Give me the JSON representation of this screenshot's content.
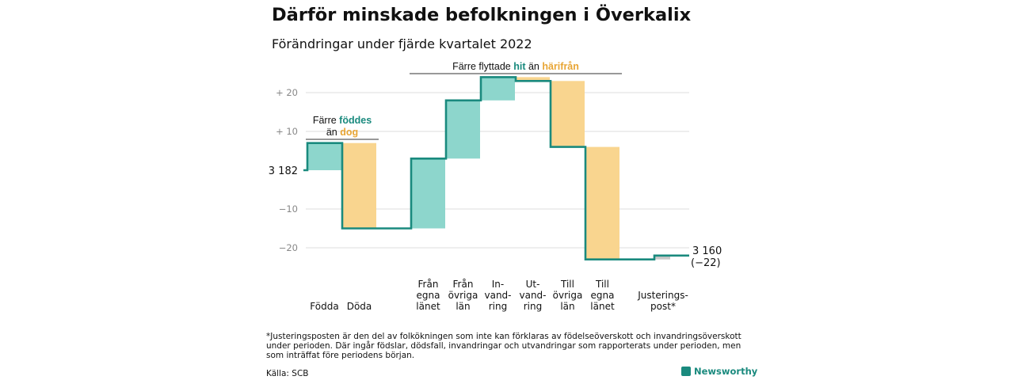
{
  "title": "Därför minskade befolkningen i Överkalix",
  "subtitle": "Förändringar under fjärde kvartalet 2022",
  "footnote": "*Justeringsposten är den del av folkökningen som inte kan förklaras av födelseöverskott och invandringsöverskott under perioden. Där ingår födslar, dödsfall, invandringar och utvandringar som rapporterats under perioden, men som inträffat före periodens början.",
  "source": "Källa: SCB",
  "brand": "Newsworthy",
  "colors": {
    "increase": "#8dd6cc",
    "decrease": "#f9d58f",
    "line": "#1a8a7e",
    "adjustment": "#c8c8c8",
    "grid": "#dddddd"
  },
  "chart_data": {
    "type": "waterfall",
    "start_label": "3 182",
    "end_label": "3 160",
    "end_change_label": "(−22)",
    "start_value": 0,
    "ylim": [
      -24,
      27
    ],
    "yticks": [
      {
        "value": 20,
        "label": "+ 20"
      },
      {
        "value": 10,
        "label": "+ 10"
      },
      {
        "value": -10,
        "label": "−10"
      },
      {
        "value": -20,
        "label": "−20"
      }
    ],
    "steps": [
      {
        "category": "Födda",
        "change": 7,
        "kind": "increase"
      },
      {
        "category": "Döda",
        "change": -22,
        "kind": "decrease"
      },
      {
        "category": "Från egna länet",
        "change": 18,
        "kind": "increase"
      },
      {
        "category": "Från övriga län",
        "change": 15,
        "kind": "increase"
      },
      {
        "category": "In-vand-ring",
        "change": 6,
        "kind": "increase"
      },
      {
        "category": "Ut-vand-ring",
        "change": -1,
        "kind": "decrease"
      },
      {
        "category": "Till övriga län",
        "change": -17,
        "kind": "decrease"
      },
      {
        "category": "Till egna länet",
        "change": -29,
        "kind": "decrease"
      },
      {
        "category": "Justerings-post*",
        "change": 1,
        "kind": "adjustment"
      }
    ],
    "category_labels": [
      [
        "Födda"
      ],
      [
        "Döda"
      ],
      [
        "Från",
        "egna",
        "länet"
      ],
      [
        "Från",
        "övriga",
        "län"
      ],
      [
        "In-",
        "vand-",
        "ring"
      ],
      [
        "Ut-",
        "vand-",
        "ring"
      ],
      [
        "Till",
        "övriga",
        "län"
      ],
      [
        "Till",
        "egna",
        "länet"
      ],
      [
        "Justerings-",
        "post*"
      ]
    ],
    "annotations": [
      {
        "words": [
          "Färre ",
          "föddes"
        ],
        "line2": [
          "än ",
          "dog"
        ]
      },
      {
        "words": [
          "Färre flyttade ",
          "hit",
          " än ",
          "härifrån"
        ]
      }
    ]
  }
}
